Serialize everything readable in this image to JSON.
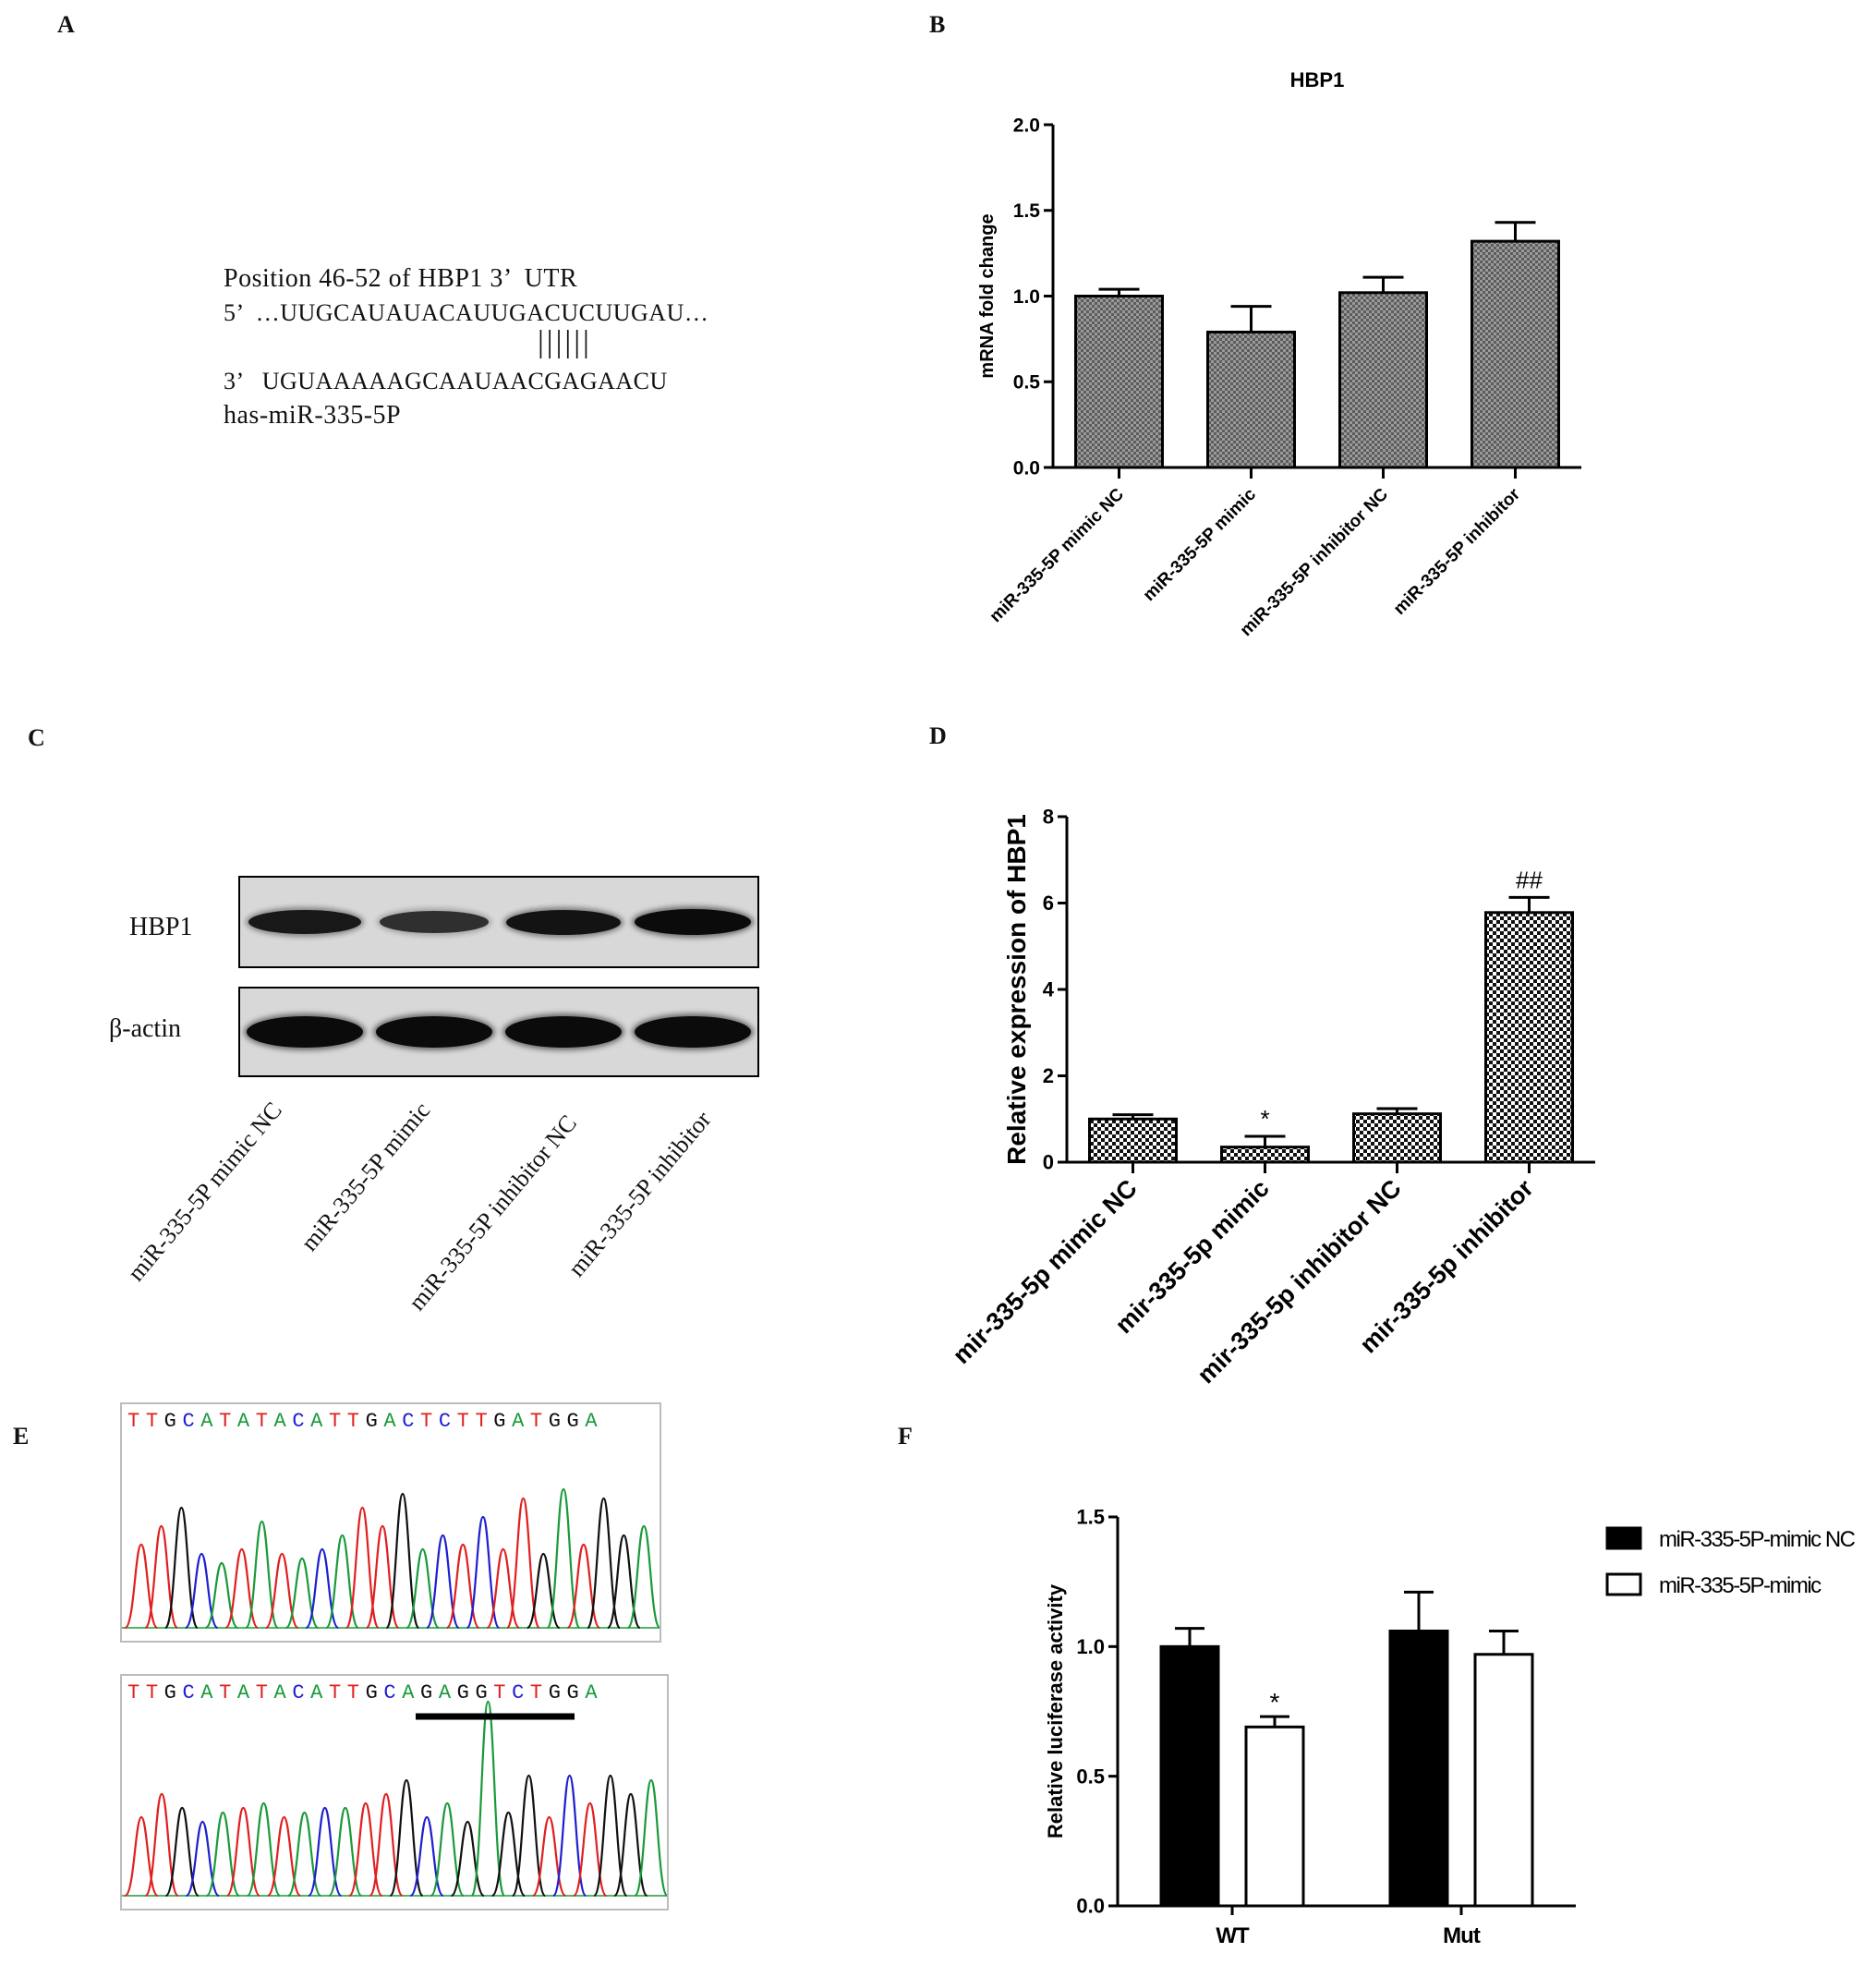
{
  "panels": {
    "A": {
      "label": "A",
      "title": "Position 46-52 of HBP1 3’  UTR",
      "line5": "5’  …UUGCAUAUACAUUGACUCUUGAU…",
      "pairs": "||||||",
      "line3": "3’   UGUAAAAAGCAAUAACGAGAACU",
      "mirna": "has-miR-335-5P"
    },
    "C": {
      "label": "C",
      "bands": [
        "HBP1",
        "β-actin"
      ],
      "lanes": [
        "miR-335-5P mimic NC",
        "miR-335-5P mimic",
        "miR-335-5P inhibitor NC",
        "miR-335-5P inhibitor"
      ],
      "band_intensity": {
        "HBP1": [
          0.85,
          0.6,
          0.9,
          1.0
        ],
        "β-actin": [
          1.0,
          1.0,
          1.0,
          1.0
        ]
      }
    },
    "E": {
      "label": "E",
      "seq_wt": "TTGCATATACATTGACTCTTGATGGA",
      "seq_mut": "TTGCATATACATTGCAGAGGTCTGGA",
      "base_colors": {
        "A": "#1a9a3a",
        "C": "#1f1fd0",
        "G": "#111111",
        "T": "#e02020"
      }
    }
  },
  "chart_data": [
    {
      "panel": "B",
      "type": "bar",
      "title": "HBP1",
      "ylabel": "mRNA fold change",
      "xlabel": "",
      "categories": [
        "miR-335-5P mimic NC",
        "miR-335-5P mimic",
        "miR-335-5P inhibitor NC",
        "miR-335-5P inhibitor"
      ],
      "values": [
        1.0,
        0.79,
        1.02,
        1.32
      ],
      "errors": [
        0.04,
        0.15,
        0.09,
        0.11
      ],
      "ylim": [
        0,
        2.0
      ],
      "yticks": [
        "0.0",
        "0.5",
        "1.0",
        "1.5",
        "2.0"
      ],
      "fill": "crosshatch-gray"
    },
    {
      "panel": "D",
      "type": "bar",
      "title": "",
      "ylabel": "Relative expression of HBP1",
      "xlabel": "",
      "categories": [
        "mir-335-5p mimic NC",
        "mir-335-5p mimic",
        "mir-335-5p inhibitor NC",
        "mir-335-5p inhibitor"
      ],
      "values": [
        1.0,
        0.35,
        1.12,
        5.78
      ],
      "errors": [
        0.1,
        0.25,
        0.12,
        0.35
      ],
      "annotations": [
        "",
        "*",
        "",
        "##"
      ],
      "ylim": [
        0,
        8
      ],
      "yticks": [
        "0",
        "2",
        "4",
        "6",
        "8"
      ],
      "fill": "checker"
    },
    {
      "panel": "F",
      "type": "bar",
      "title": "",
      "ylabel": "Relative luciferase activity",
      "xlabel": "",
      "categories": [
        "WT",
        "Mut"
      ],
      "series": [
        {
          "name": "miR-335-5P-mimic NC",
          "values": [
            1.0,
            1.06
          ],
          "errors": [
            0.07,
            0.15
          ],
          "color": "#000000"
        },
        {
          "name": "miR-335-5P-mimic",
          "values": [
            0.69,
            0.97
          ],
          "errors": [
            0.04,
            0.09
          ],
          "color": "#ffffff"
        }
      ],
      "annotations": [
        [
          "",
          "*"
        ],
        [
          "",
          ""
        ]
      ],
      "ylim": [
        0,
        1.5
      ],
      "yticks": [
        "0.0",
        "0.5",
        "1.0",
        "1.5"
      ],
      "legend": "right"
    }
  ]
}
